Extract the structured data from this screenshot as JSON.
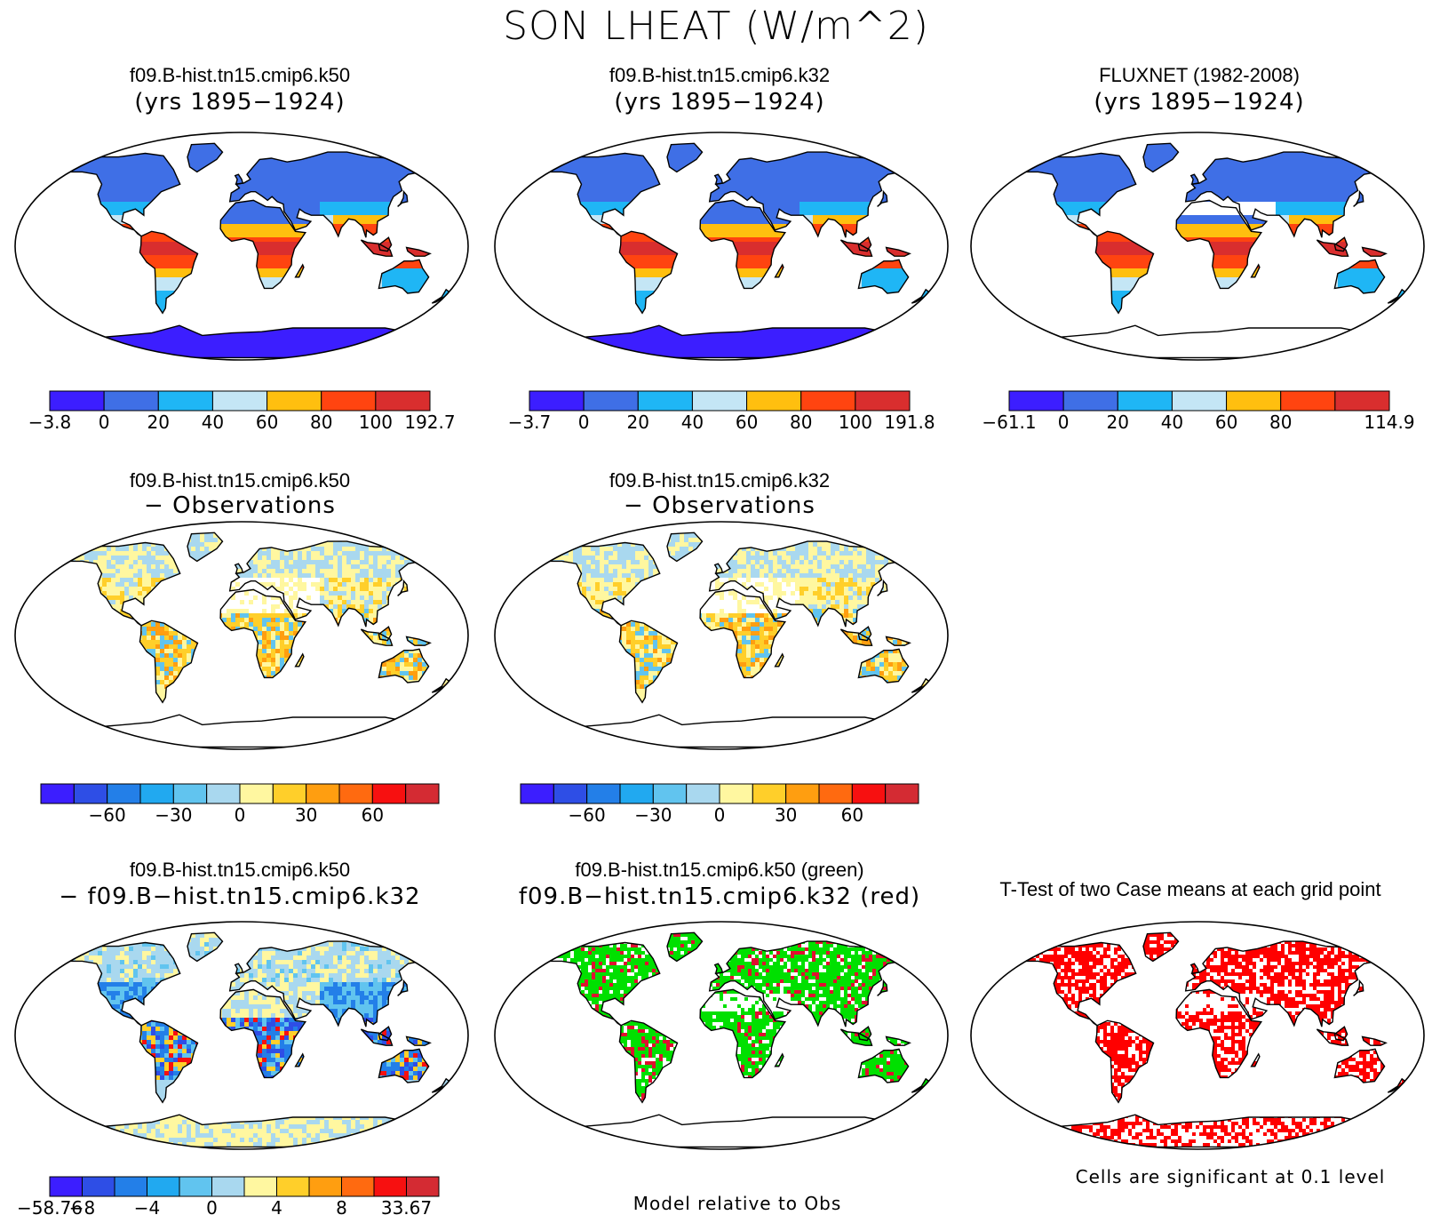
{
  "title": "SON LHEAT (W/m^2)",
  "panels": [
    {
      "id": "p1",
      "title1": "f09.B-hist.tn15.cmip6.k50",
      "title2": "(yrs 1895−1924)",
      "scheme": "abs",
      "antarctica": true
    },
    {
      "id": "p2",
      "title1": "f09.B-hist.tn15.cmip6.k32",
      "title2": "(yrs 1895−1924)",
      "scheme": "abs",
      "antarctica": true
    },
    {
      "id": "p3",
      "title1": "FLUXNET (1982-2008)",
      "title2": "(yrs 1895−1924)",
      "scheme": "obs",
      "antarctica": false
    },
    {
      "id": "p4",
      "title1": "f09.B-hist.tn15.cmip6.k50",
      "title2": "− Observations",
      "scheme": "diff",
      "antarctica": false
    },
    {
      "id": "p5",
      "title1": "f09.B-hist.tn15.cmip6.k32",
      "title2": "− Observations",
      "scheme": "diff",
      "antarctica": false
    },
    {
      "id": "p6",
      "title1": "f09.B-hist.tn15.cmip6.k50",
      "title2": "− f09.B−hist.tn15.cmip6.k32",
      "scheme": "casediff",
      "antarctica": true
    },
    {
      "id": "p7",
      "title1": "f09.B-hist.tn15.cmip6.k50 (green)",
      "title2": "f09.B−hist.tn15.cmip6.k32 (red)",
      "scheme": "greenred",
      "antarctica": false
    },
    {
      "id": "p8",
      "title1": "T-Test of two Case means at each grid point",
      "title2": "",
      "scheme": "ttest",
      "antarctica": true
    }
  ],
  "colorbars": [
    {
      "id": "cb1",
      "colors": [
        "#3c1eff",
        "#3f6fe6",
        "#1fb6f5",
        "#c4e6f5",
        "#ffbf0f",
        "#ff4410",
        "#d92e2e"
      ],
      "labels": [
        "−3.8",
        "0",
        "20",
        "40",
        "60",
        "80",
        "100",
        "192.7"
      ]
    },
    {
      "id": "cb2",
      "colors": [
        "#3c1eff",
        "#3f6fe6",
        "#1fb6f5",
        "#c4e6f5",
        "#ffbf0f",
        "#ff4410",
        "#d92e2e"
      ],
      "labels": [
        "−3.7",
        "0",
        "20",
        "40",
        "60",
        "80",
        "100",
        "191.8"
      ]
    },
    {
      "id": "cb3",
      "colors": [
        "#3c1eff",
        "#3f6fe6",
        "#1fb6f5",
        "#c4e6f5",
        "#ffbf0f",
        "#ff4410",
        "#d92e2e"
      ],
      "labels": [
        "−61.1",
        "0",
        "20",
        "40",
        "60",
        "80",
        "",
        "114.9"
      ]
    },
    {
      "id": "cb4",
      "colors": [
        "#3c1eff",
        "#2e4ee6",
        "#237fe8",
        "#21a9f0",
        "#61c4ef",
        "#a9d8ef",
        "#fff7a0",
        "#ffcf2a",
        "#ff9e10",
        "#ff6a10",
        "#f71010",
        "#d42b33"
      ],
      "labels": [
        "",
        "",
        "−60",
        "",
        "−30",
        "",
        "0",
        "",
        "30",
        "",
        "60",
        "",
        ""
      ]
    },
    {
      "id": "cb5",
      "colors": [
        "#3c1eff",
        "#2e4ee6",
        "#237fe8",
        "#21a9f0",
        "#61c4ef",
        "#a9d8ef",
        "#fff7a0",
        "#ffcf2a",
        "#ff9e10",
        "#ff6a10",
        "#f71010",
        "#d42b33"
      ],
      "labels": [
        "",
        "",
        "−60",
        "",
        "−30",
        "",
        "0",
        "",
        "30",
        "",
        "60",
        "",
        ""
      ]
    },
    {
      "id": "cb6",
      "colors": [
        "#3c1eff",
        "#2e4ee6",
        "#237fe8",
        "#21a9f0",
        "#61c4ef",
        "#a9d8ef",
        "#fff7a0",
        "#ffcf2a",
        "#ff9e10",
        "#ff6a10",
        "#f71010",
        "#d42b33"
      ],
      "labels": [
        "−58.76",
        "−8",
        "",
        "−4",
        "",
        "0",
        "",
        "4",
        "",
        "8",
        "",
        "33.67"
      ]
    }
  ],
  "notes": {
    "model_relative": "Model relative to Obs",
    "significance": "Cells are significant at 0.1 level"
  }
}
